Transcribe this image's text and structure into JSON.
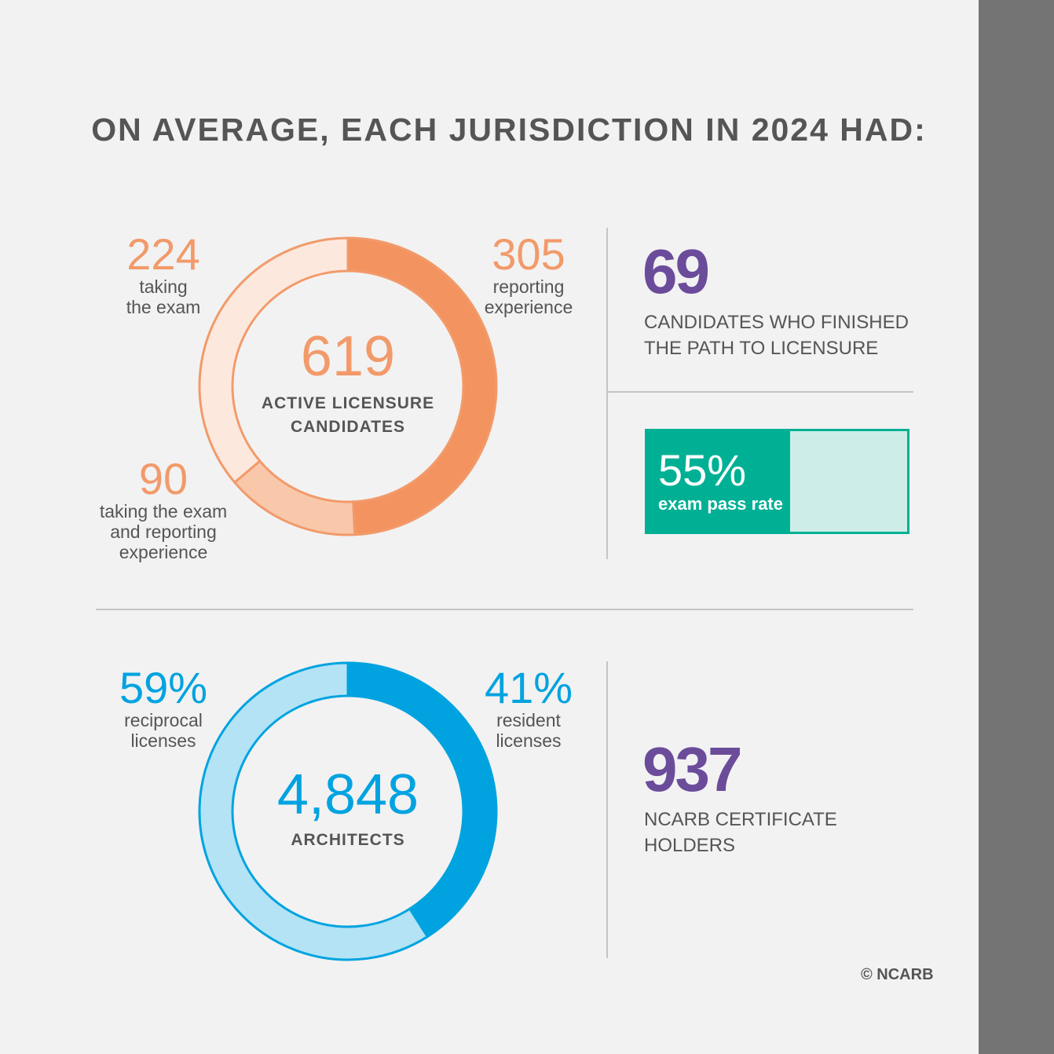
{
  "title": "ON AVERAGE, EACH JURISDICTION IN 2024 HAD:",
  "colors": {
    "orange_dark": "#f39360",
    "orange_mid": "#f9c8ab",
    "orange_light": "#fde8dd",
    "orange_stroke": "#f29a6a",
    "blue_dark": "#00a3e0",
    "blue_light": "#b3e3f5",
    "purple": "#6b4c9a",
    "teal": "#00b095",
    "teal_light": "#cdeee8",
    "text": "#555555"
  },
  "chart_data": [
    {
      "type": "pie",
      "title": "ACTIVE LICENSURE CANDIDATES",
      "total_label": "619",
      "slices": [
        {
          "name": "reporting experience",
          "value_label": "305",
          "value": 305,
          "shade": "dark"
        },
        {
          "name": "taking the exam and reporting experience",
          "value_label": "90",
          "value": 90,
          "shade": "mid"
        },
        {
          "name": "taking the exam",
          "value_label": "224",
          "value": 224,
          "shade": "light"
        }
      ],
      "slice_text": {
        "reporting_experience_lines": [
          "reporting",
          "experience"
        ],
        "taking_exam_lines": [
          "taking",
          "the exam"
        ],
        "both_lines": [
          "taking the exam",
          "and reporting",
          "experience"
        ]
      }
    },
    {
      "type": "pie",
      "title": "ARCHITECTS",
      "total_label": "4,848",
      "slices": [
        {
          "name": "resident licenses",
          "value_label": "41%",
          "value": 41,
          "shade": "dark"
        },
        {
          "name": "reciprocal licenses",
          "value_label": "59%",
          "value": 59,
          "shade": "light"
        }
      ],
      "slice_text": {
        "resident_lines": [
          "resident",
          "licenses"
        ],
        "reciprocal_lines": [
          "reciprocal",
          "licenses"
        ]
      }
    }
  ],
  "stats": {
    "finished": {
      "value": "69",
      "caption_lines": [
        "CANDIDATES WHO FINISHED",
        "THE PATH TO LICENSURE"
      ]
    },
    "pass_rate": {
      "value_label": "55%",
      "value": 55,
      "caption": "exam pass rate"
    },
    "certificate": {
      "value": "937",
      "caption_lines": [
        "NCARB CERTIFICATE",
        "HOLDERS"
      ]
    }
  },
  "copyright": "© NCARB"
}
